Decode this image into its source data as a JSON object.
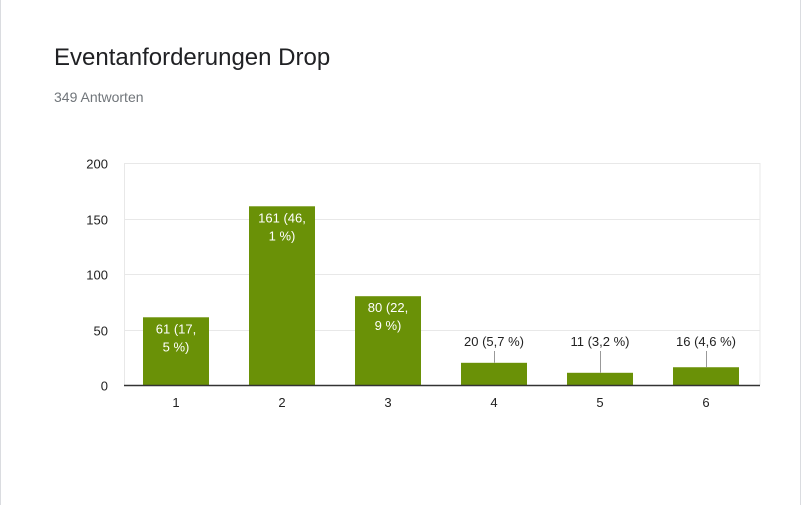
{
  "header": {
    "title": "Eventanforderungen Drop",
    "response_count": "349 Antworten"
  },
  "colors": {
    "bar": "#6a9107",
    "grid": "#e8e8e8",
    "baseline": "#333333",
    "inside_label": "#ffffff",
    "outside_label": "#222222",
    "leader": "#999999"
  },
  "chart_data": {
    "type": "bar",
    "categories": [
      "1",
      "2",
      "3",
      "4",
      "5",
      "6"
    ],
    "values": [
      61,
      161,
      80,
      20,
      11,
      16
    ],
    "data_labels": [
      [
        "61 (17,",
        "5 %)"
      ],
      [
        "161 (46,",
        "1 %)"
      ],
      [
        "80 (22,",
        "9 %)"
      ],
      [
        "20 (5,7 %)"
      ],
      [
        "11 (3,2 %)"
      ],
      [
        "16 (4,6 %)"
      ]
    ],
    "label_inside": [
      true,
      true,
      true,
      false,
      false,
      false
    ],
    "yticks": [
      "0",
      "50",
      "100",
      "150",
      "200"
    ],
    "ylim": [
      0,
      200
    ],
    "grid": true,
    "legend": "none",
    "title": "",
    "xlabel": "",
    "ylabel": ""
  }
}
